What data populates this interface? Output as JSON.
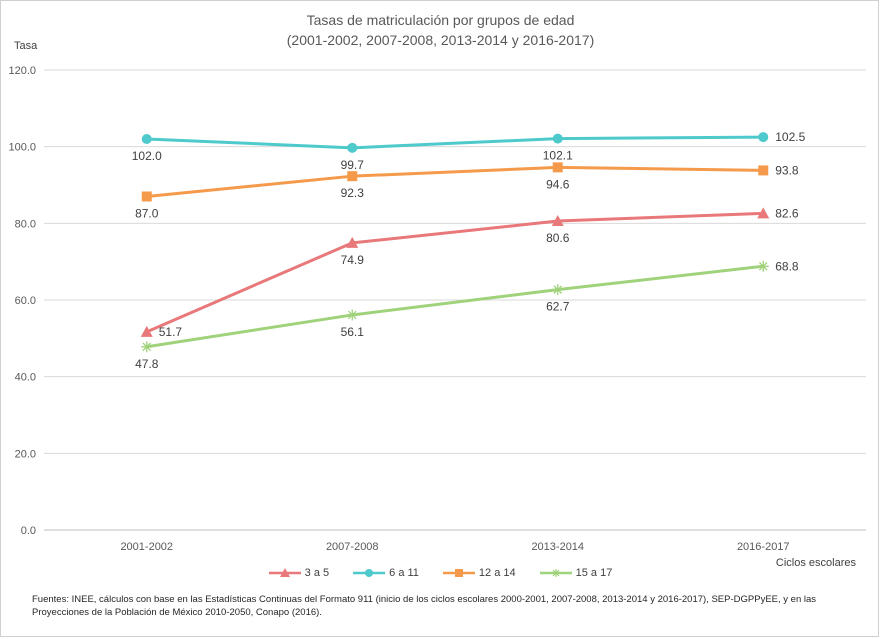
{
  "chart_data": {
    "type": "line",
    "title": [
      "Tasas de matriculación por grupos de edad",
      "(2001-2002, 2007-2008, 2013-2014 y 2016-2017)"
    ],
    "ylabel": "Tasa",
    "xlabel": "Ciclos escolares",
    "categories": [
      "2001-2002",
      "2007-2008",
      "2013-2014",
      "2016-2017"
    ],
    "ylim": [
      0,
      120
    ],
    "yticks": [
      "0.0",
      "20.0",
      "40.0",
      "60.0",
      "80.0",
      "100.0",
      "120.0"
    ],
    "grid": true,
    "legend_placement": "bottom",
    "series": [
      {
        "name": "3 a 5",
        "values": [
          51.7,
          74.9,
          80.6,
          82.6
        ],
        "labels": [
          "51.7",
          "74.9",
          "80.6",
          "82.6"
        ],
        "color": "#e8787a",
        "marker": "triangle"
      },
      {
        "name": "6 a 11",
        "values": [
          102.0,
          99.7,
          102.1,
          102.5
        ],
        "labels": [
          "102.0",
          "99.7",
          "102.1",
          "102.5"
        ],
        "color": "#4ec9cc",
        "marker": "circle"
      },
      {
        "name": "12 a 14",
        "values": [
          87.0,
          92.3,
          94.6,
          93.8
        ],
        "labels": [
          "87.0",
          "92.3",
          "94.6",
          "93.8"
        ],
        "color": "#f59a4a",
        "marker": "square"
      },
      {
        "name": "15 a 17",
        "values": [
          47.8,
          56.1,
          62.7,
          68.8
        ],
        "labels": [
          "47.8",
          "56.1",
          "62.7",
          "68.8"
        ],
        "color": "#9fd27a",
        "marker": "star"
      }
    ]
  },
  "footnote": "Fuentes: INEE, cálculos con base en las Estadísticas Continuas del Formato 911 (inicio de los ciclos escolares 2000-2001, 2007-2008, 2013-2014 y 2016-2017), SEP-DGPPyEE, y en las Proyecciones de la Población de México 2010-2050, Conapo (2016)."
}
